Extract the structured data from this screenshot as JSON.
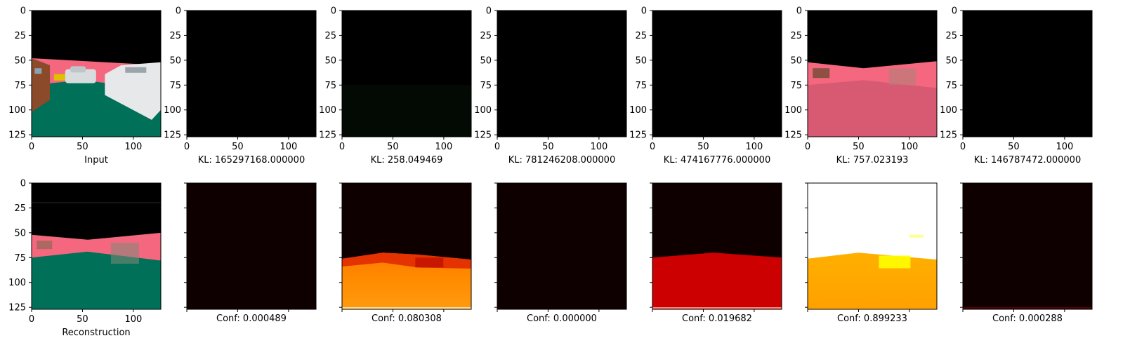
{
  "chart_data": {
    "type": "image-grid",
    "grid": {
      "rows": 2,
      "cols": 7
    },
    "axes": {
      "x_range": [
        0,
        127
      ],
      "y_range": [
        0,
        127
      ],
      "x_ticks": [
        0,
        50,
        100
      ],
      "y_ticks": [
        0,
        25,
        50,
        75,
        100,
        125
      ],
      "x_tick_labels": [
        "0",
        "50",
        "100"
      ],
      "y_tick_labels": [
        "0",
        "25",
        "50",
        "75",
        "100",
        "125"
      ],
      "y_inverted": true
    },
    "top_row": [
      {
        "caption": "Input",
        "image": "input",
        "show_axes_labels": true
      },
      {
        "caption": "KL: 165297168.000000",
        "image": "black",
        "show_axes_labels": true
      },
      {
        "caption": "KL: 258.049469",
        "image": "dark-green",
        "show_axes_labels": true
      },
      {
        "caption": "KL: 781246208.000000",
        "image": "black",
        "show_axes_labels": true
      },
      {
        "caption": "KL: 474167776.000000",
        "image": "black",
        "show_axes_labels": true
      },
      {
        "caption": "KL: 757.023193",
        "image": "pink-road",
        "show_axes_labels": true
      },
      {
        "caption": "KL: 146787472.000000",
        "image": "black",
        "show_axes_labels": true
      }
    ],
    "bottom_row": [
      {
        "caption": "Reconstruction",
        "image": "reconstruction",
        "show_axes_labels": true
      },
      {
        "caption": "Conf: 0.000489",
        "confidence": 0.000489,
        "image": "heat-dark",
        "show_axes_labels": false
      },
      {
        "caption": "Conf: 0.080308",
        "confidence": 0.080308,
        "image": "heat-orange",
        "show_axes_labels": false
      },
      {
        "caption": "Conf: 0.000000",
        "confidence": 0.0,
        "image": "heat-dark",
        "show_axes_labels": false
      },
      {
        "caption": "Conf: 0.019682",
        "confidence": 0.019682,
        "image": "heat-red",
        "show_axes_labels": false
      },
      {
        "caption": "Conf: 0.899233",
        "confidence": 0.899233,
        "image": "heat-bright",
        "show_axes_labels": false
      },
      {
        "caption": "Conf: 0.000288",
        "confidence": 0.000288,
        "image": "heat-dark-line",
        "show_axes_labels": false
      }
    ],
    "colors": {
      "black": "#000000",
      "sky": "#000000",
      "pink": "#f4677e",
      "pink_dark": "#d75a72",
      "green": "#007058",
      "brown": "#8b4a2a",
      "heat_dark": "#0f0000",
      "heat_red": "#cc0000",
      "heat_orange": "#ff8c00",
      "heat_amber": "#ffa500",
      "white": "#ffffff",
      "yellow": "#ffff00"
    }
  }
}
